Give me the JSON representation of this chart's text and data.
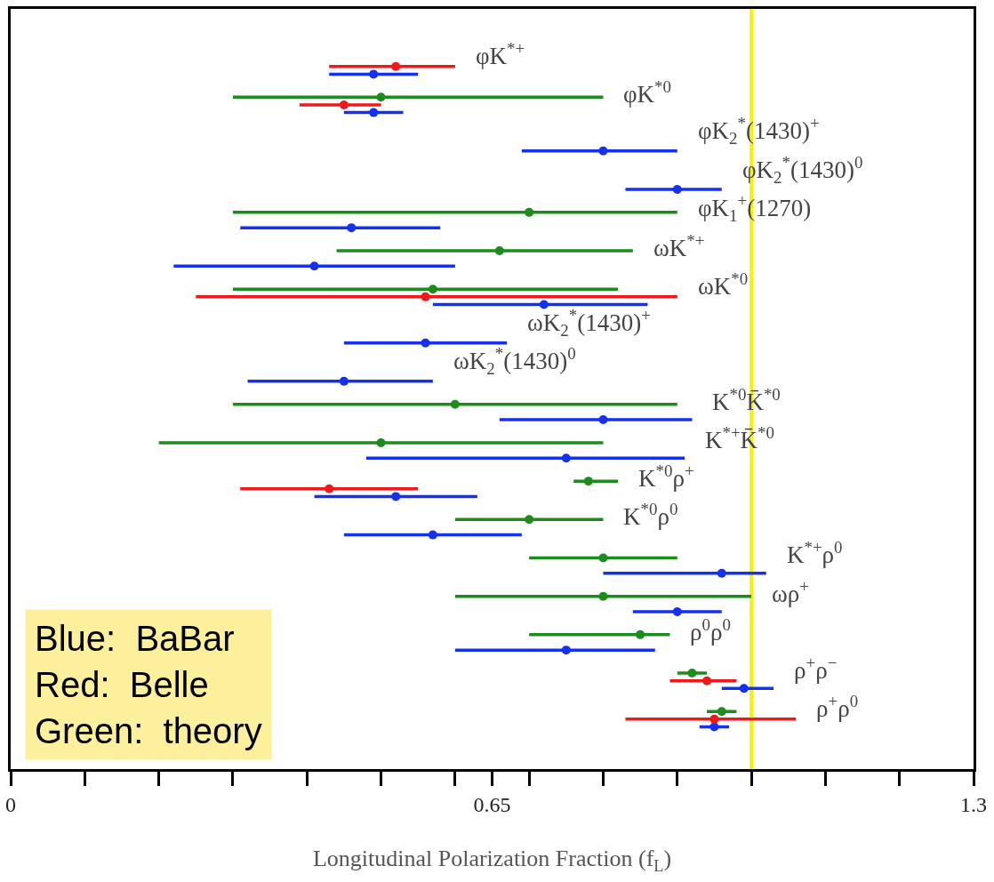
{
  "chart_data": {
    "type": "scatter",
    "orientation": "horizontal",
    "xlabel": "Longitudinal Polarization Fraction (f$_{L}$)",
    "categories": [
      null,
      null,
      null,
      null,
      null,
      null,
      null,
      null,
      null,
      null,
      null,
      null,
      null,
      null,
      null,
      null,
      null,
      null,
      null,
      null,
      null,
      null,
      null,
      null,
      null,
      null,
      null,
      null,
      null,
      null,
      null,
      null,
      null,
      null,
      null,
      null,
      null,
      null,
      null,
      null,
      null,
      null,
      null,
      null,
      null,
      null,
      null,
      null,
      null,
      null,
      null,
      null,
      null,
      null,
      null,
      null,
      null,
      null,
      null,
      null,
      null,
      null,
      null,
      null,
      null,
      null,
      null,
      null,
      null,
      null,
      null,
      null,
      null,
      null,
      null,
      null,
      null,
      null,
      null,
      null,
      null,
      null,
      null,
      null,
      null,
      null,
      null,
      null,
      null,
      null,
      null,
      null,
      null,
      null,
      null,
      null,
      null,
      null,
      null
    ],
    "series": [
      {
        "color": "#1530ee",
        "values": [
          null,
          null,
          null,
          null,
          null,
          null,
          null,
          null,
          0.49,
          null,
          null,
          null,
          null,
          0.49,
          null,
          null,
          null,
          null,
          0.8,
          null,
          null,
          null,
          null,
          0.9,
          null,
          null,
          null,
          null,
          0.46,
          null,
          null,
          null,
          null,
          0.41,
          null,
          null,
          null,
          null,
          0.72,
          null,
          null,
          null,
          null,
          0.56,
          null,
          null,
          null,
          null,
          0.45,
          null,
          null,
          null,
          null,
          0.8,
          null,
          null,
          null,
          null,
          0.75,
          null,
          null,
          null,
          null,
          0.52,
          null,
          null,
          null,
          null,
          0.57,
          null,
          null,
          null,
          null,
          0.96,
          null,
          null,
          null,
          null,
          0.9,
          null,
          null,
          null,
          null,
          0.75,
          null,
          null,
          null,
          null,
          0.99,
          null,
          null,
          null,
          null,
          0.95,
          null,
          null,
          null,
          null,
          null
        ],
        "errors": [
          null,
          null,
          null,
          null,
          null,
          null,
          null,
          null,
          [
            0.43,
            0.55
          ],
          null,
          null,
          null,
          null,
          [
            0.45,
            0.53
          ],
          null,
          null,
          null,
          null,
          [
            0.69,
            0.9
          ],
          null,
          null,
          null,
          null,
          [
            0.83,
            0.96
          ],
          null,
          null,
          null,
          null,
          [
            0.31,
            0.58
          ],
          null,
          null,
          null,
          null,
          [
            0.22,
            0.6
          ],
          null,
          null,
          null,
          null,
          [
            0.57,
            0.86
          ],
          null,
          null,
          null,
          null,
          [
            0.45,
            0.67
          ],
          null,
          null,
          null,
          null,
          [
            0.32,
            0.57
          ],
          null,
          null,
          null,
          null,
          [
            0.66,
            0.92
          ],
          null,
          null,
          null,
          null,
          [
            0.48,
            0.91
          ],
          null,
          null,
          null,
          null,
          [
            0.41,
            0.63
          ],
          null,
          null,
          null,
          null,
          [
            0.45,
            0.69
          ],
          null,
          null,
          null,
          null,
          [
            0.8,
            1.02
          ],
          null,
          null,
          null,
          null,
          [
            0.84,
            0.96
          ],
          null,
          null,
          null,
          null,
          [
            0.6,
            0.87
          ],
          null,
          null,
          null,
          null,
          [
            0.96,
            1.03
          ],
          null,
          null,
          null,
          null,
          [
            0.93,
            0.97
          ],
          null,
          null,
          null,
          null,
          null
        ]
      },
      {
        "color": "#f01818",
        "values": [
          null,
          null,
          null,
          null,
          null,
          null,
          null,
          0.52,
          null,
          null,
          null,
          null,
          0.45,
          null,
          null,
          null,
          null,
          null,
          null,
          null,
          null,
          null,
          null,
          null,
          null,
          null,
          null,
          null,
          null,
          null,
          null,
          null,
          null,
          null,
          null,
          null,
          null,
          0.56,
          null,
          null,
          null,
          null,
          null,
          null,
          null,
          null,
          null,
          null,
          null,
          null,
          null,
          null,
          null,
          null,
          null,
          null,
          null,
          null,
          null,
          null,
          null,
          null,
          0.43,
          null,
          null,
          null,
          null,
          null,
          null,
          null,
          null,
          null,
          null,
          null,
          null,
          null,
          null,
          null,
          null,
          null,
          null,
          null,
          null,
          null,
          null,
          null,
          null,
          0.94,
          null,
          null,
          null,
          null,
          0.95,
          null,
          null,
          null,
          null,
          null,
          null
        ],
        "errors": [
          null,
          null,
          null,
          null,
          null,
          null,
          null,
          [
            0.43,
            0.6
          ],
          null,
          null,
          null,
          null,
          [
            0.39,
            0.5
          ],
          null,
          null,
          null,
          null,
          null,
          null,
          null,
          null,
          null,
          null,
          null,
          null,
          null,
          null,
          null,
          null,
          null,
          null,
          null,
          null,
          null,
          null,
          null,
          null,
          [
            0.25,
            0.9
          ],
          null,
          null,
          null,
          null,
          null,
          null,
          null,
          null,
          null,
          null,
          null,
          null,
          null,
          null,
          null,
          null,
          null,
          null,
          null,
          null,
          null,
          null,
          null,
          null,
          [
            0.31,
            0.55
          ],
          null,
          null,
          null,
          null,
          null,
          null,
          null,
          null,
          null,
          null,
          null,
          null,
          null,
          null,
          null,
          null,
          null,
          null,
          null,
          null,
          null,
          null,
          null,
          null,
          [
            0.89,
            0.98
          ],
          null,
          null,
          null,
          null,
          [
            0.83,
            1.06
          ],
          null,
          null,
          null,
          null,
          null,
          null
        ]
      },
      {
        "color": "#1c8c1c",
        "values": [
          null,
          null,
          null,
          null,
          null,
          null,
          null,
          null,
          null,
          null,
          null,
          0.5,
          null,
          null,
          null,
          null,
          null,
          null,
          null,
          null,
          null,
          null,
          null,
          null,
          null,
          null,
          0.7,
          null,
          null,
          null,
          null,
          0.66,
          null,
          null,
          null,
          null,
          0.57,
          null,
          null,
          null,
          null,
          null,
          null,
          null,
          null,
          null,
          null,
          null,
          null,
          null,
          null,
          0.6,
          null,
          null,
          null,
          null,
          0.5,
          null,
          null,
          null,
          null,
          0.78,
          null,
          null,
          null,
          null,
          0.7,
          null,
          null,
          null,
          null,
          0.8,
          null,
          null,
          null,
          null,
          0.8,
          null,
          null,
          null,
          null,
          0.85,
          null,
          null,
          null,
          null,
          0.92,
          null,
          null,
          null,
          null,
          0.96,
          null,
          null,
          null,
          null,
          null,
          null,
          null
        ],
        "errors": [
          null,
          null,
          null,
          null,
          null,
          null,
          null,
          null,
          null,
          null,
          null,
          [
            0.3,
            0.8
          ],
          null,
          null,
          null,
          null,
          null,
          null,
          null,
          null,
          null,
          null,
          null,
          null,
          null,
          null,
          [
            0.3,
            0.9
          ],
          null,
          null,
          null,
          null,
          [
            0.44,
            0.84
          ],
          null,
          null,
          null,
          null,
          [
            0.3,
            0.82
          ],
          null,
          null,
          null,
          null,
          null,
          null,
          null,
          null,
          null,
          null,
          null,
          null,
          null,
          null,
          [
            0.3,
            0.9
          ],
          null,
          null,
          null,
          null,
          [
            0.2,
            0.8
          ],
          null,
          null,
          null,
          null,
          [
            0.76,
            0.82
          ],
          null,
          null,
          null,
          null,
          [
            0.6,
            0.8
          ],
          null,
          null,
          null,
          null,
          [
            0.7,
            0.9
          ],
          null,
          null,
          null,
          null,
          [
            0.6,
            1.0
          ],
          null,
          null,
          null,
          null,
          [
            0.7,
            0.89
          ],
          null,
          null,
          null,
          null,
          [
            0.9,
            0.94
          ],
          null,
          null,
          null,
          null,
          [
            0.94,
            0.98
          ],
          null,
          null,
          null,
          null,
          null,
          null,
          null
        ]
      }
    ],
    "xlim": [
      0,
      1.3
    ],
    "xticks": [
      0,
      {
        "value": 0.1,
        "label": null
      },
      {
        "value": 0.2,
        "label": null
      },
      {
        "value": 0.3,
        "label": null
      },
      {
        "value": 0.4,
        "label": null
      },
      {
        "value": 0.5,
        "label": null
      },
      {
        "value": 0.6,
        "label": null
      },
      {
        "value": 0.65,
        "label": "0.65"
      },
      {
        "value": 0.7,
        "label": null
      },
      {
        "value": 0.8,
        "label": null
      },
      {
        "value": 0.9,
        "label": null
      },
      {
        "value": 1.0,
        "label": null
      },
      {
        "value": 1.1,
        "label": null
      },
      {
        "value": 1.2,
        "label": null
      },
      1.3
    ],
    "tick_labels": "x",
    "grid": false,
    "marker": "circle",
    "ref_lines": [
      {
        "axis": "x",
        "value": 1.0,
        "color": "#f5f500"
      }
    ],
    "annotations": [
      "φK$^{*+}$",
      "φK$^{*0}$",
      "φK$_{2}$$^{*}$(1430)$^{+}$",
      "φK$_{2}$$^{*}$(1430)$^{0}$",
      "φK$_{1}$$^{+}$(1270)",
      "ωK$^{*+}$",
      "ωK$^{*0}$",
      "ωK$_{2}$$^{*}$(1430)$^{+}$",
      "ωK$_{2}$$^{*}$(1430)$^{0}$",
      "K$^{*0}$K̄$^{*0}$",
      "K$^{*+}$K̄$^{*0}$",
      "K$^{*0}$ρ$^{+}$",
      "K$^{*0}$ρ$^{0}$",
      "K$^{*+}$ρ$^{0}$",
      "ωρ$^{+}$",
      "ρ$^{0}$ρ$^{0}$",
      "ρ$^{+}$ρ$^{−}$",
      "ρ$^{+}$ρ$^{0}$",
      "Blue:  BaBar",
      "Red:  Belle",
      "Green:  theory"
    ]
  }
}
